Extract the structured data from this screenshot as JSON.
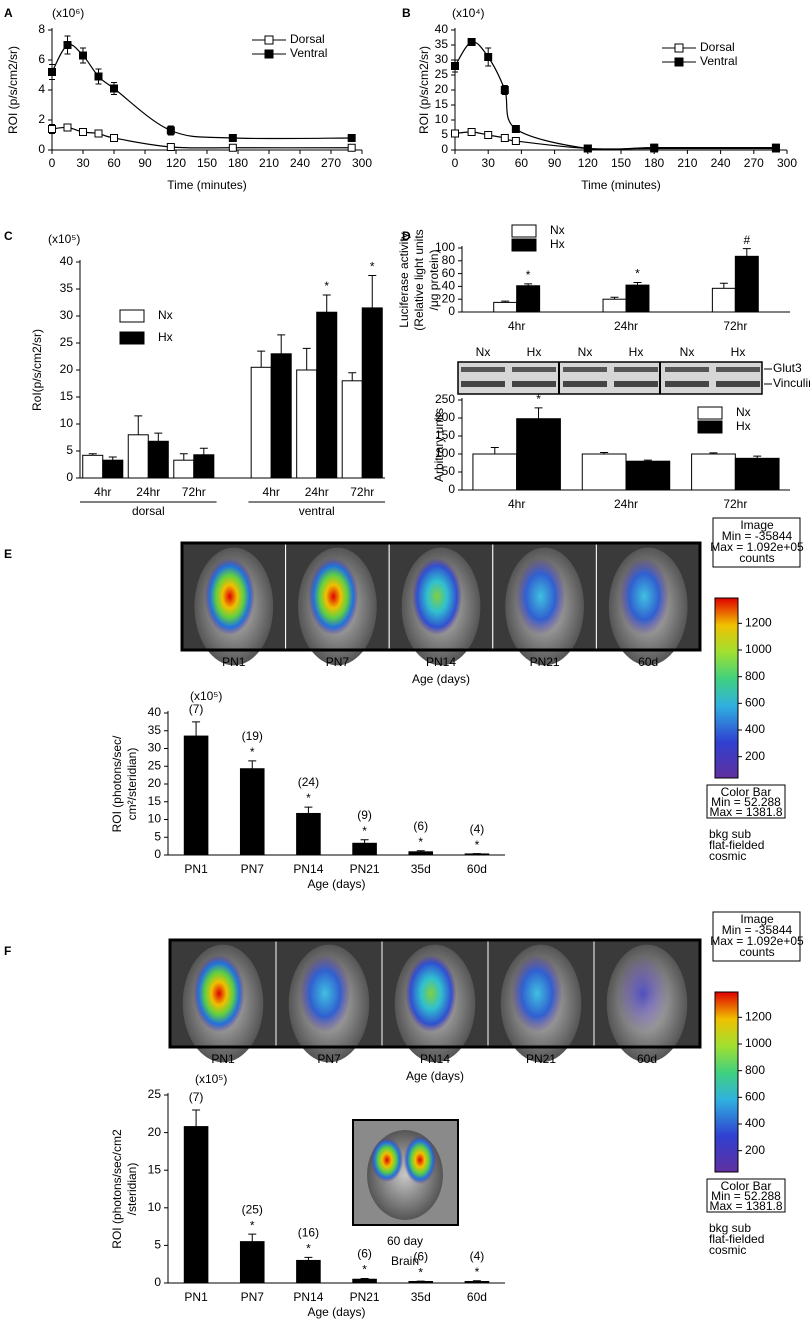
{
  "chart_data": [
    {
      "type": "line",
      "panel": "A",
      "multiplier": "(x10⁶)",
      "ylabel": [
        "ROI (p/s/cm2/sr)"
      ],
      "xlabel": "Time (minutes)",
      "x": [
        0,
        15,
        30,
        45,
        60,
        115,
        175,
        290
      ],
      "series": [
        {
          "name": "Dorsal",
          "color": "#ffffff",
          "values": [
            1.4,
            1.5,
            1.2,
            1.1,
            0.8,
            0.2,
            0.15,
            0.15
          ],
          "errors": [
            0.3,
            0.2,
            0.15,
            0.15,
            0.1,
            0.05,
            0.05,
            0.05
          ]
        },
        {
          "name": "Ventral",
          "color": "#000000",
          "values": [
            5.2,
            7.0,
            6.3,
            4.9,
            4.1,
            1.3,
            0.8,
            0.8
          ],
          "errors": [
            0.5,
            0.6,
            0.5,
            0.5,
            0.4,
            0.3,
            0.1,
            0.1
          ]
        }
      ],
      "xlim": [
        0,
        300
      ],
      "xticks": [
        0,
        30,
        60,
        90,
        120,
        150,
        180,
        210,
        240,
        270,
        300
      ],
      "ylim": [
        0,
        8
      ],
      "yticks": [
        0,
        2,
        4,
        6,
        8
      ],
      "legend": "upper right"
    },
    {
      "type": "line",
      "panel": "B",
      "multiplier": "(x10⁴)",
      "ylabel": [
        "ROI (p/s/cm2/sr)"
      ],
      "xlabel": "Time (minutes)",
      "x": [
        0,
        15,
        30,
        45,
        55,
        120,
        180,
        290
      ],
      "series": [
        {
          "name": "Dorsal",
          "color": "#ffffff",
          "values": [
            5.5,
            6,
            5,
            4,
            3,
            0.5,
            0.5,
            0.5
          ]
        },
        {
          "name": "Ventral",
          "color": "#000000",
          "values": [
            28,
            36,
            31,
            20,
            7,
            0.5,
            0.8,
            0.8
          ],
          "errors": [
            2,
            1,
            3,
            1.5,
            0.5,
            0.2,
            0.2,
            0.2
          ]
        }
      ],
      "xlim": [
        0,
        300
      ],
      "xticks": [
        0,
        30,
        60,
        90,
        120,
        150,
        180,
        210,
        240,
        270,
        300
      ],
      "ylim": [
        0,
        40
      ],
      "yticks": [
        0,
        5,
        10,
        15,
        20,
        25,
        30,
        35,
        40
      ],
      "legend": "upper right"
    },
    {
      "type": "bar",
      "panel": "C",
      "multiplier": "(x10⁵)",
      "ylabel": [
        "RoI(p/s/cm2/sr)"
      ],
      "categories": [
        "4hr",
        "24hr",
        "72hr",
        "4hr",
        "24hr",
        "72hr"
      ],
      "groups": [
        "dorsal",
        "ventral"
      ],
      "series": [
        {
          "name": "Nx",
          "color": "#ffffff",
          "values": [
            4.2,
            8,
            3.3,
            20.5,
            20,
            18
          ],
          "errors": [
            0.3,
            3.5,
            1.2,
            3,
            4,
            1.5
          ]
        },
        {
          "name": "Hx",
          "color": "#000000",
          "values": [
            3.3,
            6.8,
            4.3,
            23,
            30.7,
            31.5
          ],
          "errors": [
            0.6,
            1.5,
            1.2,
            3.5,
            3.2,
            6
          ],
          "annotations": [
            null,
            null,
            null,
            null,
            "*",
            "*"
          ]
        }
      ],
      "ylim": [
        0,
        40
      ],
      "yticks": [
        0,
        5,
        10,
        15,
        20,
        25,
        30,
        35,
        40
      ],
      "legend": "upper left"
    },
    {
      "type": "bar",
      "panel": "D",
      "ylabel": [
        "Luciferase activity",
        "(Relative light units",
        "/μg protein)"
      ],
      "categories": [
        "4hr",
        "24hr",
        "72hr"
      ],
      "series": [
        {
          "name": "Nx",
          "color": "#ffffff",
          "values": [
            15,
            20,
            37
          ],
          "errors": [
            2,
            3,
            8
          ]
        },
        {
          "name": "Hx",
          "color": "#000000",
          "values": [
            41,
            42,
            87
          ],
          "errors": [
            3,
            4,
            12
          ],
          "annotations": [
            "*",
            "*",
            "#"
          ]
        }
      ],
      "ylim": [
        0,
        100
      ],
      "yticks": [
        0,
        20,
        40,
        60,
        80,
        100
      ],
      "legend": "upper left"
    },
    {
      "type": "bar",
      "ylabel": [
        "Arbitrary units"
      ],
      "categories": [
        "4hr",
        "24hr",
        "72hr"
      ],
      "series": [
        {
          "name": "Nx",
          "color": "#ffffff",
          "values": [
            100,
            100,
            100
          ],
          "errors": [
            18,
            4,
            3
          ]
        },
        {
          "name": "Hx",
          "color": "#000000",
          "values": [
            198,
            80,
            88
          ],
          "errors": [
            30,
            3,
            6
          ],
          "annotations": [
            "*",
            null,
            null
          ]
        }
      ],
      "ylim": [
        0,
        250
      ],
      "yticks": [
        0,
        50,
        100,
        150,
        200,
        250
      ],
      "legend": "upper right"
    },
    {
      "type": "bar",
      "multiplier": "(x10⁵)",
      "ylabel": [
        "ROI (photons/sec/",
        "cm²/steridian)"
      ],
      "xlabel": "Age (days)",
      "categories": [
        "PN1",
        "PN7",
        "PN14",
        "PN21",
        "35d",
        "60d"
      ],
      "series": [
        {
          "name": null,
          "color": "#000000",
          "values": [
            33.5,
            24.3,
            11.7,
            3.3,
            0.9,
            0.3
          ],
          "errors": [
            4,
            2.2,
            1.8,
            1,
            0.3,
            0.1
          ],
          "annotations": [
            null,
            "*",
            "*",
            "*",
            "*",
            "*"
          ],
          "n_labels": [
            "(7)",
            "(19)",
            "(24)",
            "(9)",
            "(6)",
            "(4)"
          ]
        }
      ],
      "ylim": [
        0,
        40
      ],
      "yticks": [
        0,
        5,
        10,
        15,
        20,
        25,
        30,
        35,
        40
      ]
    },
    {
      "type": "bar",
      "multiplier": "(x10⁵)",
      "ylabel": [
        "ROI (photons/sec/cm2",
        "/steridian)"
      ],
      "xlabel": "Age (days)",
      "categories": [
        "PN1",
        "PN7",
        "PN14",
        "PN21",
        "35d",
        "60d"
      ],
      "series": [
        {
          "name": null,
          "color": "#000000",
          "values": [
            20.8,
            5.5,
            3.0,
            0.5,
            0.2,
            0.2
          ],
          "errors": [
            2.2,
            1,
            0.4,
            0.1,
            0.05,
            0.1
          ],
          "annotations": [
            null,
            "*",
            "*",
            "*",
            "*",
            "*"
          ],
          "n_labels": [
            "(7)",
            "(25)",
            "(16)",
            "(6)",
            "(6)",
            "(4)"
          ]
        }
      ],
      "ylim": [
        0,
        25
      ],
      "yticks": [
        0,
        5,
        10,
        15,
        20,
        25
      ]
    }
  ],
  "blot": {
    "lanes": [
      "Nx",
      "Hx",
      "Nx",
      "Hx",
      "Nx",
      "Hx"
    ],
    "bands": [
      "Glut3",
      "Vinculin"
    ]
  },
  "images": [
    {
      "panel": "E",
      "labels": [
        "PN1",
        "PN7",
        "PN14",
        "PN21",
        "60d"
      ],
      "xlabel": "Age (days)"
    },
    {
      "panel": "F",
      "labels": [
        "PN1",
        "PN7",
        "PN14",
        "PN21",
        "60d"
      ],
      "xlabel": "Age (days)"
    }
  ],
  "inset": {
    "lines": [
      "60 day",
      "Brain"
    ]
  },
  "colorbars": [
    {
      "header": [
        "Image",
        "Min = -35844",
        "Max = 1.092e+05",
        "counts"
      ],
      "ticks": [
        200,
        400,
        600,
        800,
        1000,
        1200
      ],
      "lim": [
        40,
        1390
      ],
      "footer": [
        "Color Bar",
        "Min = 52.288",
        "Max = 1381.8"
      ],
      "notes": [
        "bkg sub",
        "flat-fielded",
        "cosmic"
      ]
    },
    {
      "header": [
        "Image",
        "Min = -35844",
        "Max = 1.092e+05",
        "counts"
      ],
      "ticks": [
        200,
        400,
        600,
        800,
        1000,
        1200
      ],
      "lim": [
        40,
        1390
      ],
      "footer": [
        "Color Bar",
        "Min = 52.288",
        "Max = 1381.8"
      ],
      "notes": [
        "bkg sub",
        "flat-fielded",
        "cosmic"
      ]
    }
  ]
}
